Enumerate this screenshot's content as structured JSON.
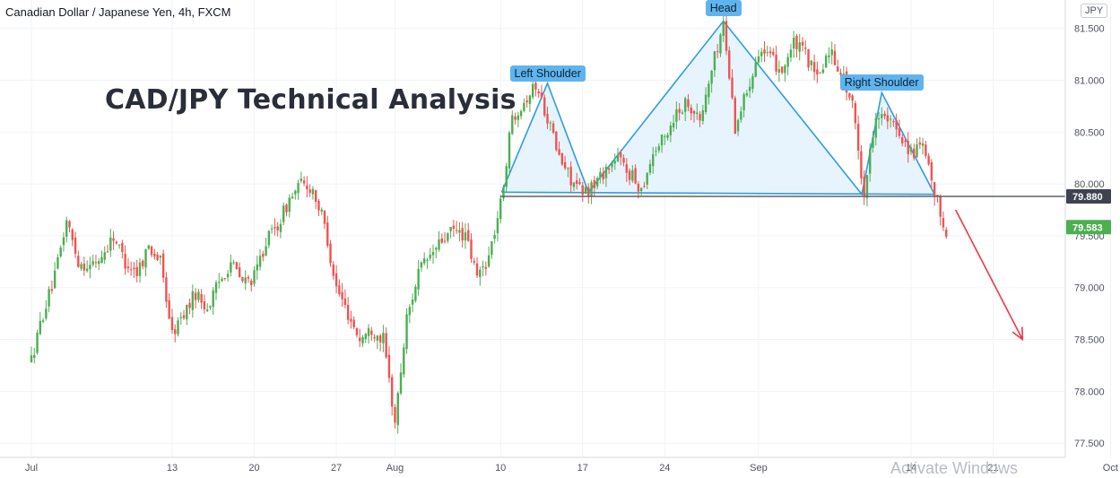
{
  "header": {
    "symbol_line": "Canadian Dollar / Japanese Yen, 4h, FXCM",
    "headline": "CAD/JPY Technical Analysis",
    "currency_badge": "JPY"
  },
  "patterns": {
    "left_shoulder": "Left Shoulder",
    "head": "Head",
    "right_shoulder": "Right Shoulder"
  },
  "watermark": "Activate Windows",
  "colors": {
    "up": "#26a69a",
    "up_bar": "#4caf50",
    "down": "#ef5350",
    "pattern_line": "#2f9be3",
    "pattern_fill": "#e3f2fd",
    "neckline": "#5d606b",
    "arrow": "#f23645",
    "grid": "#f0f3fa"
  },
  "chart_data": {
    "type": "candlestick",
    "y_axis": {
      "range": [
        77.3,
        81.75
      ],
      "ticks": [
        "77.500",
        "78.000",
        "78.500",
        "79.000",
        "79.500",
        "80.000",
        "80.500",
        "81.000",
        "81.500"
      ]
    },
    "x_axis": {
      "ticks": [
        {
          "label": "Jul",
          "day": 0
        },
        {
          "label": "13",
          "day": 12
        },
        {
          "label": "20",
          "day": 19
        },
        {
          "label": "27",
          "day": 26
        },
        {
          "label": "Aug",
          "day": 31
        },
        {
          "label": "10",
          "day": 40
        },
        {
          "label": "17",
          "day": 47
        },
        {
          "label": "24",
          "day": 54
        },
        {
          "label": "Sep",
          "day": 62
        },
        {
          "label": "14",
          "day": 75
        },
        {
          "label": "21",
          "day": 82
        },
        {
          "label": "Oct",
          "day": 92
        }
      ]
    },
    "price_markers": [
      {
        "label": "79.880",
        "value": 79.88,
        "style": "dark"
      },
      {
        "label": "79.583",
        "value": 79.583,
        "style": "green"
      }
    ],
    "price_path": [
      [
        0,
        78.3
      ],
      [
        1,
        78.75
      ],
      [
        2,
        79.1
      ],
      [
        3,
        79.65
      ],
      [
        4,
        79.25
      ],
      [
        5,
        79.2
      ],
      [
        6,
        79.3
      ],
      [
        7,
        79.5
      ],
      [
        8,
        79.25
      ],
      [
        9,
        79.15
      ],
      [
        10,
        79.4
      ],
      [
        11,
        79.25
      ],
      [
        12,
        78.55
      ],
      [
        13,
        78.75
      ],
      [
        14,
        78.95
      ],
      [
        15,
        78.8
      ],
      [
        16,
        79.05
      ],
      [
        17,
        79.25
      ],
      [
        18,
        79.05
      ],
      [
        19,
        79.1
      ],
      [
        20,
        79.45
      ],
      [
        21,
        79.6
      ],
      [
        22,
        79.85
      ],
      [
        23,
        80.0
      ],
      [
        24,
        79.95
      ],
      [
        25,
        79.6
      ],
      [
        26,
        79.0
      ],
      [
        27,
        78.75
      ],
      [
        28,
        78.5
      ],
      [
        29,
        78.6
      ],
      [
        30,
        78.5
      ],
      [
        31,
        77.7
      ],
      [
        32,
        78.7
      ],
      [
        33,
        79.15
      ],
      [
        34,
        79.3
      ],
      [
        35,
        79.45
      ],
      [
        36,
        79.55
      ],
      [
        37,
        79.5
      ],
      [
        38,
        79.1
      ],
      [
        39,
        79.3
      ],
      [
        40,
        79.8
      ],
      [
        41,
        80.65
      ],
      [
        42,
        80.8
      ],
      [
        43,
        80.95
      ],
      [
        44,
        80.65
      ],
      [
        45,
        80.25
      ],
      [
        46,
        80.05
      ],
      [
        47,
        79.9
      ],
      [
        48,
        80.0
      ],
      [
        49,
        80.15
      ],
      [
        50,
        80.25
      ],
      [
        51,
        80.1
      ],
      [
        52,
        79.95
      ],
      [
        53,
        80.3
      ],
      [
        54,
        80.45
      ],
      [
        55,
        80.7
      ],
      [
        56,
        80.8
      ],
      [
        57,
        80.6
      ],
      [
        58,
        81.1
      ],
      [
        59,
        81.55
      ],
      [
        60,
        80.55
      ],
      [
        61,
        80.9
      ],
      [
        62,
        81.3
      ],
      [
        63,
        81.2
      ],
      [
        64,
        81.1
      ],
      [
        65,
        81.35
      ],
      [
        66,
        81.25
      ],
      [
        67,
        81.0
      ],
      [
        68,
        81.3
      ],
      [
        69,
        81.1
      ],
      [
        70,
        80.75
      ],
      [
        71,
        79.9
      ],
      [
        72,
        80.7
      ],
      [
        73,
        80.6
      ],
      [
        74,
        80.5
      ],
      [
        75,
        80.3
      ],
      [
        76,
        80.35
      ],
      [
        77,
        79.9
      ],
      [
        78,
        79.55
      ]
    ],
    "annotations": [
      {
        "text": "Left Shoulder",
        "day": 44,
        "price": 80.97
      },
      {
        "text": "Head",
        "day": 59,
        "price": 81.6
      },
      {
        "text": "Right Shoulder",
        "day": 72.5,
        "price": 80.88
      }
    ],
    "neckline": [
      [
        40,
        79.93
      ],
      [
        77,
        79.91
      ]
    ],
    "projection_arrow": {
      "from": [
        78.8,
        79.75
      ],
      "to": [
        84.5,
        78.5
      ]
    }
  }
}
